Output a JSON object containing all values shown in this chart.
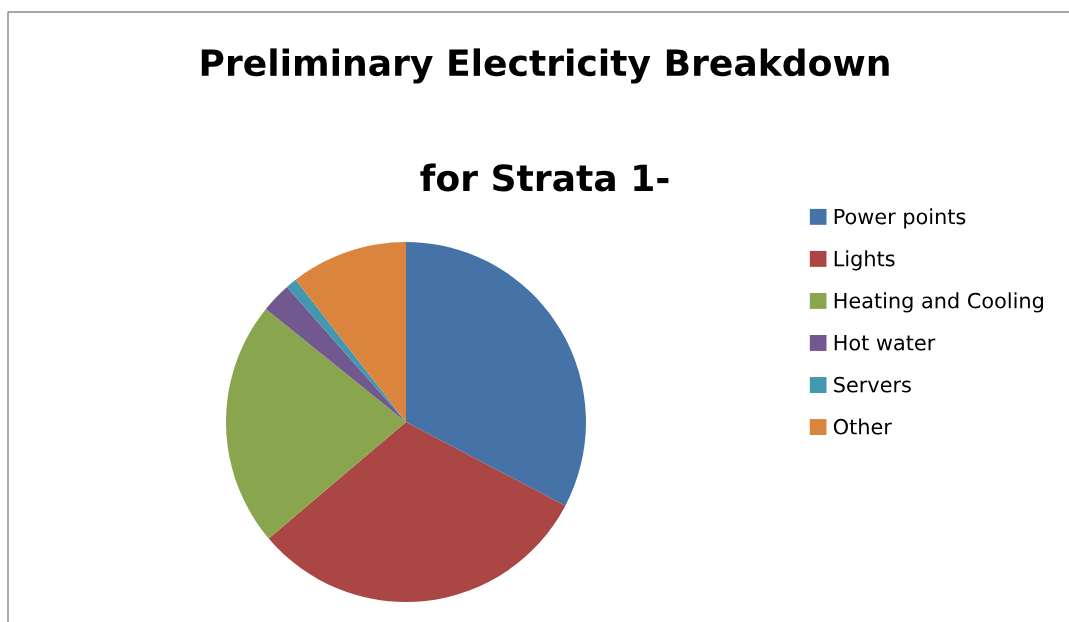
{
  "chart_data": {
    "type": "pie",
    "title": "Preliminary Electricity Breakdown",
    "subtitle": "for Strata 1-",
    "categories": [
      "Power points",
      "Lights",
      "Heating and Cooling",
      "Hot water",
      "Servers",
      "Other"
    ],
    "values": [
      32.7,
      31.1,
      22.0,
      2.7,
      1.0,
      10.5
    ],
    "colors": [
      "#4572a7",
      "#aa4643",
      "#89a54e",
      "#71588f",
      "#4198af",
      "#db843d"
    ],
    "legend": "right"
  }
}
